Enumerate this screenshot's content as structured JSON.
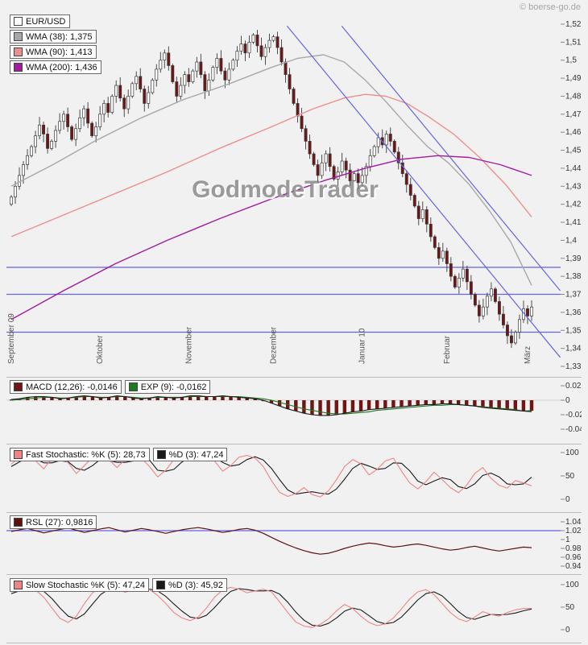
{
  "branding": {
    "copyright": "© boerse-go.de",
    "watermark": "GodmodeTrader"
  },
  "colors": {
    "up_candle": "#ffffff",
    "down_candle": "#701414",
    "candle_outline": "#3a3a3a",
    "wma38": "#a8a8a8",
    "wma90": "#ee8f8f",
    "wma200": "#a11ca1",
    "trendline": "#6464e6",
    "macd_hist": "#701414",
    "macd_line": "#1a1a1a",
    "exp_line": "#1e7a1e",
    "stoch_k": "#f08484",
    "stoch_d": "#1a1a1a",
    "rsl_line": "#5d1212",
    "axis_text": "#333333",
    "month_text": "#555555"
  },
  "main_chart": {
    "legend": [
      {
        "label": "EUR/USD",
        "swatch": "#ffffff"
      },
      {
        "label": "WMA (38): 1,375",
        "swatch": "#a8a8a8"
      },
      {
        "label": "WMA (90): 1,413",
        "swatch": "#ee8f8f"
      },
      {
        "label": "WMA (200): 1,436",
        "swatch": "#a11ca1"
      }
    ]
  },
  "panels": {
    "macd": {
      "legend": [
        {
          "label": "MACD (12,26): -0,0146",
          "swatch": "#701414"
        },
        {
          "label": "EXP (9): -0,0162",
          "swatch": "#1e7a1e"
        }
      ]
    },
    "fast_stoch": {
      "legend": [
        {
          "label": "Fast Stochastic: %K (5): 28,73",
          "swatch": "#f08484"
        },
        {
          "label": "%D (3): 47,24",
          "swatch": "#1a1a1a"
        }
      ]
    },
    "rsl": {
      "legend": [
        {
          "label": "RSL (27): 0,9816",
          "swatch": "#5d1212"
        }
      ]
    },
    "slow_stoch": {
      "legend": [
        {
          "label": "Slow Stochastic %K (5): 47,24",
          "swatch": "#f08484"
        },
        {
          "label": "%D (3): 45,92",
          "swatch": "#1a1a1a"
        }
      ]
    }
  },
  "chart_data": [
    {
      "type": "candlestick",
      "title": "EUR/USD",
      "ylim": [
        1.33,
        1.52
      ],
      "ytick_top": 1.52,
      "ytick_step": 0.01,
      "ytick_labels": [
        "1,52",
        "1,51",
        "1,5",
        "1,49",
        "1,48",
        "1,47",
        "1,46",
        "1,45",
        "1,44",
        "1,43",
        "1,42",
        "1,41",
        "1,4",
        "1,39",
        "1,38",
        "1,37",
        "1,36",
        "1,35",
        "1,34",
        "1,33"
      ],
      "x_labels": [
        "September 09",
        "Oktober",
        "November",
        "Dezember",
        "Januar 10",
        "Februar",
        "März"
      ],
      "month_start_idx": [
        0,
        22,
        44,
        65,
        87,
        108,
        128
      ],
      "first_open": 1.42,
      "wick": 0.0035,
      "closes": [
        1.424,
        1.43,
        1.436,
        1.442,
        1.447,
        1.452,
        1.458,
        1.464,
        1.459,
        1.451,
        1.455,
        1.461,
        1.466,
        1.47,
        1.463,
        1.456,
        1.462,
        1.468,
        1.473,
        1.465,
        1.458,
        1.463,
        1.47,
        1.476,
        1.471,
        1.48,
        1.486,
        1.479,
        1.473,
        1.48,
        1.487,
        1.491,
        1.484,
        1.476,
        1.482,
        1.489,
        1.495,
        1.5,
        1.504,
        1.497,
        1.488,
        1.48,
        1.486,
        1.492,
        1.488,
        1.494,
        1.499,
        1.492,
        1.483,
        1.489,
        1.496,
        1.501,
        1.494,
        1.489,
        1.495,
        1.5,
        1.505,
        1.509,
        1.504,
        1.51,
        1.514,
        1.508,
        1.502,
        1.507,
        1.511,
        1.513,
        1.507,
        1.499,
        1.492,
        1.484,
        1.476,
        1.469,
        1.462,
        1.455,
        1.448,
        1.442,
        1.436,
        1.443,
        1.448,
        1.441,
        1.434,
        1.438,
        1.444,
        1.439,
        1.433,
        1.437,
        1.432,
        1.436,
        1.441,
        1.447,
        1.452,
        1.457,
        1.453,
        1.459,
        1.455,
        1.449,
        1.443,
        1.437,
        1.431,
        1.425,
        1.419,
        1.412,
        1.417,
        1.409,
        1.402,
        1.396,
        1.39,
        1.394,
        1.387,
        1.38,
        1.374,
        1.379,
        1.384,
        1.377,
        1.37,
        1.364,
        1.358,
        1.363,
        1.369,
        1.373,
        1.366,
        1.359,
        1.353,
        1.347,
        1.343,
        1.349,
        1.356,
        1.362,
        1.358,
        1.363
      ],
      "wma": [
        {
          "name": "WMA (38)",
          "value": 1.375,
          "color_key": "wma38",
          "points": [
            [
              0,
              1.43
            ],
            [
              0.08,
              1.442
            ],
            [
              0.16,
              1.455
            ],
            [
              0.25,
              1.468
            ],
            [
              0.33,
              1.478
            ],
            [
              0.42,
              1.487
            ],
            [
              0.5,
              1.496
            ],
            [
              0.55,
              1.501
            ],
            [
              0.6,
              1.503
            ],
            [
              0.64,
              1.499
            ],
            [
              0.68,
              1.489
            ],
            [
              0.72,
              1.477
            ],
            [
              0.76,
              1.464
            ],
            [
              0.8,
              1.452
            ],
            [
              0.84,
              1.443
            ],
            [
              0.88,
              1.431
            ],
            [
              0.92,
              1.416
            ],
            [
              0.96,
              1.399
            ],
            [
              1,
              1.375
            ]
          ]
        },
        {
          "name": "WMA (90)",
          "value": 1.413,
          "color_key": "wma90",
          "points": [
            [
              0,
              1.402
            ],
            [
              0.1,
              1.414
            ],
            [
              0.2,
              1.426
            ],
            [
              0.3,
              1.438
            ],
            [
              0.4,
              1.451
            ],
            [
              0.5,
              1.463
            ],
            [
              0.58,
              1.473
            ],
            [
              0.64,
              1.479
            ],
            [
              0.68,
              1.481
            ],
            [
              0.72,
              1.48
            ],
            [
              0.76,
              1.476
            ],
            [
              0.8,
              1.469
            ],
            [
              0.85,
              1.459
            ],
            [
              0.9,
              1.446
            ],
            [
              0.95,
              1.431
            ],
            [
              1,
              1.413
            ]
          ]
        },
        {
          "name": "WMA (200)",
          "value": 1.436,
          "color_key": "wma200",
          "points": [
            [
              0,
              1.356
            ],
            [
              0.1,
              1.372
            ],
            [
              0.2,
              1.387
            ],
            [
              0.3,
              1.4
            ],
            [
              0.4,
              1.412
            ],
            [
              0.5,
              1.423
            ],
            [
              0.6,
              1.433
            ],
            [
              0.68,
              1.44
            ],
            [
              0.75,
              1.445
            ],
            [
              0.82,
              1.447
            ],
            [
              0.88,
              1.446
            ],
            [
              0.94,
              1.442
            ],
            [
              1,
              1.436
            ]
          ]
        }
      ],
      "trendlines": [
        {
          "x1": 0.53,
          "p1": 1.519,
          "x2": 1.055,
          "p2": 1.335
        },
        {
          "x1": 0.635,
          "p1": 1.519,
          "x2": 1.055,
          "p2": 1.372
        }
      ],
      "hlines": [
        1.385,
        1.37,
        1.349
      ]
    },
    {
      "type": "macd",
      "title": "MACD",
      "ylim": [
        -0.045,
        0.028
      ],
      "yticks": [
        {
          "v": 0.02,
          "t": "0.02"
        },
        {
          "v": 0,
          "t": "0"
        },
        {
          "v": -0.02,
          "t": "-0.02"
        },
        {
          "v": -0.04,
          "t": "-0.04"
        }
      ],
      "hist": [
        0.001,
        0.002,
        0.004,
        0.005,
        0.005,
        0.004,
        0.002,
        0.003,
        0.005,
        0.006,
        0.005,
        0.003,
        0.004,
        0.006,
        0.005,
        0.003,
        0.002,
        0.003,
        0.005,
        0.004,
        0.003,
        0.004,
        0.006,
        0.006,
        0.005,
        0.005,
        0.006,
        0.005,
        0.004,
        0.003,
        0.002,
        0.0,
        -0.004,
        -0.008,
        -0.012,
        -0.015,
        -0.018,
        -0.02,
        -0.021,
        -0.021,
        -0.02,
        -0.018,
        -0.016,
        -0.015,
        -0.013,
        -0.012,
        -0.011,
        -0.01,
        -0.009,
        -0.008,
        -0.007,
        -0.006,
        -0.006,
        -0.005,
        -0.005,
        -0.006,
        -0.007,
        -0.008,
        -0.01,
        -0.011,
        -0.012,
        -0.013,
        -0.014,
        -0.015,
        -0.0146
      ],
      "macd_line": [
        0.001,
        0.002,
        0.004,
        0.005,
        0.005,
        0.004,
        0.002,
        0.003,
        0.005,
        0.006,
        0.005,
        0.003,
        0.004,
        0.006,
        0.005,
        0.003,
        0.002,
        0.003,
        0.005,
        0.004,
        0.003,
        0.004,
        0.006,
        0.006,
        0.005,
        0.005,
        0.006,
        0.005,
        0.004,
        0.003,
        0.002,
        0.0,
        -0.004,
        -0.008,
        -0.012,
        -0.015,
        -0.018,
        -0.02,
        -0.021,
        -0.021,
        -0.02,
        -0.018,
        -0.016,
        -0.015,
        -0.013,
        -0.012,
        -0.011,
        -0.01,
        -0.009,
        -0.008,
        -0.007,
        -0.006,
        -0.006,
        -0.005,
        -0.005,
        -0.006,
        -0.007,
        -0.008,
        -0.01,
        -0.011,
        -0.012,
        -0.013,
        -0.014,
        -0.015,
        -0.0146
      ],
      "exp_line": [
        0.0,
        0.001,
        0.002,
        0.003,
        0.004,
        0.004,
        0.003,
        0.003,
        0.004,
        0.005,
        0.005,
        0.004,
        0.004,
        0.005,
        0.005,
        0.004,
        0.003,
        0.003,
        0.004,
        0.004,
        0.004,
        0.004,
        0.005,
        0.005,
        0.005,
        0.005,
        0.005,
        0.005,
        0.005,
        0.004,
        0.003,
        0.002,
        0.0,
        -0.003,
        -0.006,
        -0.009,
        -0.012,
        -0.014,
        -0.016,
        -0.018,
        -0.019,
        -0.019,
        -0.018,
        -0.017,
        -0.016,
        -0.014,
        -0.013,
        -0.012,
        -0.011,
        -0.01,
        -0.009,
        -0.008,
        -0.007,
        -0.007,
        -0.006,
        -0.006,
        -0.007,
        -0.008,
        -0.009,
        -0.01,
        -0.011,
        -0.012,
        -0.013,
        -0.015,
        -0.0162
      ]
    },
    {
      "type": "line",
      "title": "Fast Stochastic",
      "ylim": [
        0,
        100
      ],
      "yticks": [
        {
          "v": 100,
          "t": "100"
        },
        {
          "v": 50,
          "t": "50"
        },
        {
          "v": 0,
          "t": "0"
        }
      ],
      "k": [
        75,
        90,
        96,
        82,
        65,
        88,
        95,
        78,
        55,
        72,
        90,
        95,
        85,
        68,
        85,
        94,
        88,
        70,
        48,
        62,
        85,
        95,
        88,
        92,
        96,
        82,
        60,
        72,
        90,
        94,
        88,
        70,
        40,
        15,
        6,
        12,
        25,
        10,
        5,
        18,
        42,
        70,
        85,
        76,
        52,
        64,
        82,
        88,
        60,
        35,
        22,
        38,
        58,
        42,
        25,
        14,
        30,
        55,
        68,
        45,
        30,
        24,
        40,
        35,
        28.73
      ],
      "d": [
        70,
        80,
        88,
        86,
        78,
        78,
        83,
        80,
        66,
        62,
        72,
        86,
        83,
        79,
        79,
        82,
        90,
        84,
        62,
        60,
        64,
        80,
        89,
        92,
        92,
        90,
        79,
        71,
        74,
        85,
        91,
        84,
        66,
        42,
        20,
        11,
        14,
        16,
        13,
        11,
        22,
        43,
        66,
        77,
        71,
        64,
        66,
        78,
        77,
        61,
        39,
        31,
        39,
        46,
        42,
        27,
        23,
        33,
        51,
        56,
        48,
        33,
        31,
        33,
        47.24
      ]
    },
    {
      "type": "line",
      "title": "RSL",
      "ylim": [
        0.94,
        1.04
      ],
      "yticks": [
        {
          "v": 1.04,
          "t": "1.04"
        },
        {
          "v": 1.02,
          "t": "1.02"
        },
        {
          "v": 1,
          "t": "1"
        },
        {
          "v": 0.98,
          "t": "0.98"
        },
        {
          "v": 0.96,
          "t": "0.96"
        },
        {
          "v": 0.94,
          "t": "0.94"
        }
      ],
      "hline": 1.02,
      "values": [
        1.018,
        1.022,
        1.025,
        1.02,
        1.015,
        1.019,
        1.023,
        1.026,
        1.021,
        1.016,
        1.02,
        1.024,
        1.027,
        1.022,
        1.017,
        1.021,
        1.025,
        1.022,
        1.018,
        1.014,
        1.018,
        1.022,
        1.025,
        1.027,
        1.024,
        1.02,
        1.016,
        1.019,
        1.023,
        1.025,
        1.021,
        1.014,
        1.005,
        0.996,
        0.988,
        0.981,
        0.975,
        0.97,
        0.967,
        0.969,
        0.974,
        0.98,
        0.985,
        0.989,
        0.992,
        0.99,
        0.986,
        0.983,
        0.985,
        0.988,
        0.99,
        0.987,
        0.983,
        0.979,
        0.976,
        0.978,
        0.982,
        0.985,
        0.981,
        0.977,
        0.974,
        0.977,
        0.98,
        0.983,
        0.9816
      ]
    },
    {
      "type": "line",
      "title": "Slow Stochastic",
      "ylim": [
        0,
        100
      ],
      "yticks": [
        {
          "v": 100,
          "t": "100"
        },
        {
          "v": 50,
          "t": "50"
        },
        {
          "v": 0,
          "t": "0"
        }
      ],
      "k": [
        85,
        92,
        95,
        88,
        72,
        48,
        25,
        16,
        30,
        58,
        82,
        93,
        96,
        90,
        83,
        88,
        93,
        89,
        76,
        58,
        38,
        26,
        20,
        28,
        48,
        72,
        88,
        94,
        90,
        82,
        86,
        90,
        84,
        62,
        38,
        17,
        8,
        5,
        12,
        24,
        42,
        56,
        47,
        30,
        16,
        9,
        13,
        26,
        46,
        68,
        84,
        89,
        78,
        58,
        38,
        24,
        18,
        28,
        40,
        34,
        30,
        38,
        44,
        47,
        47.24
      ],
      "d": [
        80,
        86,
        91,
        92,
        85,
        69,
        48,
        30,
        24,
        35,
        57,
        78,
        90,
        93,
        89,
        87,
        90,
        90,
        86,
        74,
        57,
        41,
        28,
        25,
        32,
        49,
        69,
        85,
        91,
        89,
        86,
        86,
        87,
        79,
        61,
        39,
        21,
        10,
        8,
        14,
        26,
        41,
        48,
        44,
        31,
        18,
        13,
        16,
        28,
        47,
        66,
        80,
        84,
        75,
        58,
        40,
        27,
        23,
        29,
        34,
        33,
        34,
        37,
        42,
        45.92
      ]
    }
  ]
}
